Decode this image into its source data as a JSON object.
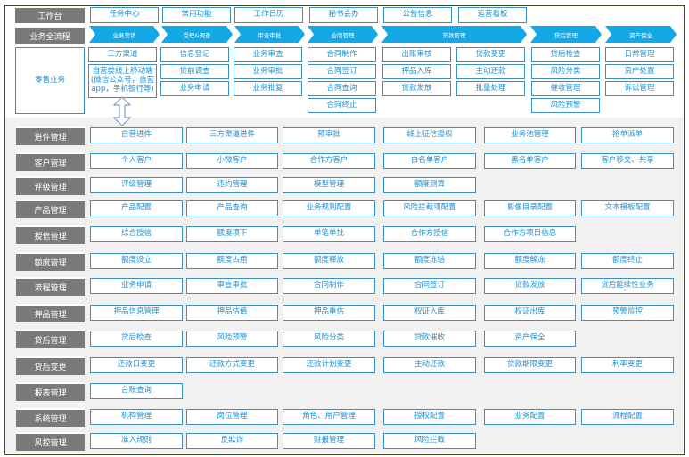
{
  "colors": {
    "label_bg": "#7a7a7a",
    "box_border": "#3a8fc4",
    "box_text": "#1e8fd0",
    "arrow": "#14a9e6",
    "bottom_bg": "#f1f1f1"
  },
  "workbench": {
    "label": "工作台",
    "items": [
      "任务中心",
      "常用功能",
      "工作日历",
      "秘书会办",
      "公告信息",
      "运营看板"
    ]
  },
  "process": {
    "label": "业务全流程",
    "stages": [
      "业务营销",
      "受理&调查",
      "审查审批",
      "合同管理",
      "贷款管理",
      "贷后管理",
      "资产保全"
    ]
  },
  "retail": {
    "label": "零售业务",
    "columns": [
      [
        "三方渠道",
        "自营类线上移动端(微信公众号，自营app，手机银行等)"
      ],
      [
        "信息登记",
        "贷前调查",
        "业务申请"
      ],
      [
        "业务审查",
        "业务审批",
        "业务批复"
      ],
      [
        "合同制作",
        "合同签订",
        "合同查询",
        "合同终止"
      ],
      [
        "出账审核",
        "押品入库",
        "贷款发放"
      ],
      [
        "贷款变更",
        "主动还款",
        "批量处理"
      ],
      [
        "贷后检查",
        "风险分类",
        "催收管理",
        "风险预警"
      ],
      [
        "日常管理",
        "资产处置",
        "诉讼管理"
      ]
    ],
    "connector_icon": "up-down-arrow-icon"
  },
  "modules": [
    {
      "label": "进件管理",
      "items": [
        "自营进件",
        "三方渠道进件",
        "预审批",
        "线上征信授权",
        "业务池管理",
        "抢单派单"
      ]
    },
    {
      "label": "客户管理",
      "items": [
        "个人客户",
        "小微客户",
        "合作方客户",
        "白名单客户",
        "黑名单客户",
        "客户移交、共享"
      ]
    },
    {
      "label": "评级管理",
      "items": [
        "评级管理",
        "违约管理",
        "模型管理",
        "额度测算"
      ]
    },
    {
      "label": "产品管理",
      "items": [
        "产品配置",
        "产品查询",
        "业务规则配置",
        "风险拦截项配置",
        "影像目录配置",
        "文本模板配置"
      ]
    },
    {
      "label": "授信管理",
      "items": [
        "综合授信",
        "额度项下",
        "单笔单批",
        "合作方授信",
        "合作方项目信息"
      ]
    },
    {
      "label": "额度管理",
      "items": [
        "额度设立",
        "额度占用",
        "额度释放",
        "额度冻结",
        "额度解冻",
        "额度终止"
      ]
    },
    {
      "label": "流程管理",
      "items": [
        "业务申请",
        "审查审批",
        "合同制作",
        "合同签订",
        "贷款发放",
        "贷后延续性业务"
      ]
    },
    {
      "label": "押品管理",
      "items": [
        "押品信息管理",
        "押品估值",
        "押品重估",
        "权证入库",
        "权证出库",
        "预警监控"
      ]
    },
    {
      "label": "贷后管理",
      "items": [
        "贷后检查",
        "风险预警",
        "风险分类",
        "贷款催收",
        "资产保全"
      ]
    },
    {
      "label": "贷后变更",
      "items": [
        "还款日变更",
        "还款方式变更",
        "还款计划变更",
        "主动还款",
        "贷款期限变更",
        "利率变更"
      ]
    },
    {
      "label": "报表管理",
      "items": [
        "台账查询"
      ]
    },
    {
      "label": "系统管理",
      "items": [
        "机构管理",
        "岗位管理",
        "角色、用户管理",
        "授权配置",
        "业务配置",
        "流程配置"
      ]
    },
    {
      "label": "风控管理",
      "items": [
        "准入规则",
        "反欺诈",
        "财报管理",
        "风险拦截"
      ]
    }
  ]
}
